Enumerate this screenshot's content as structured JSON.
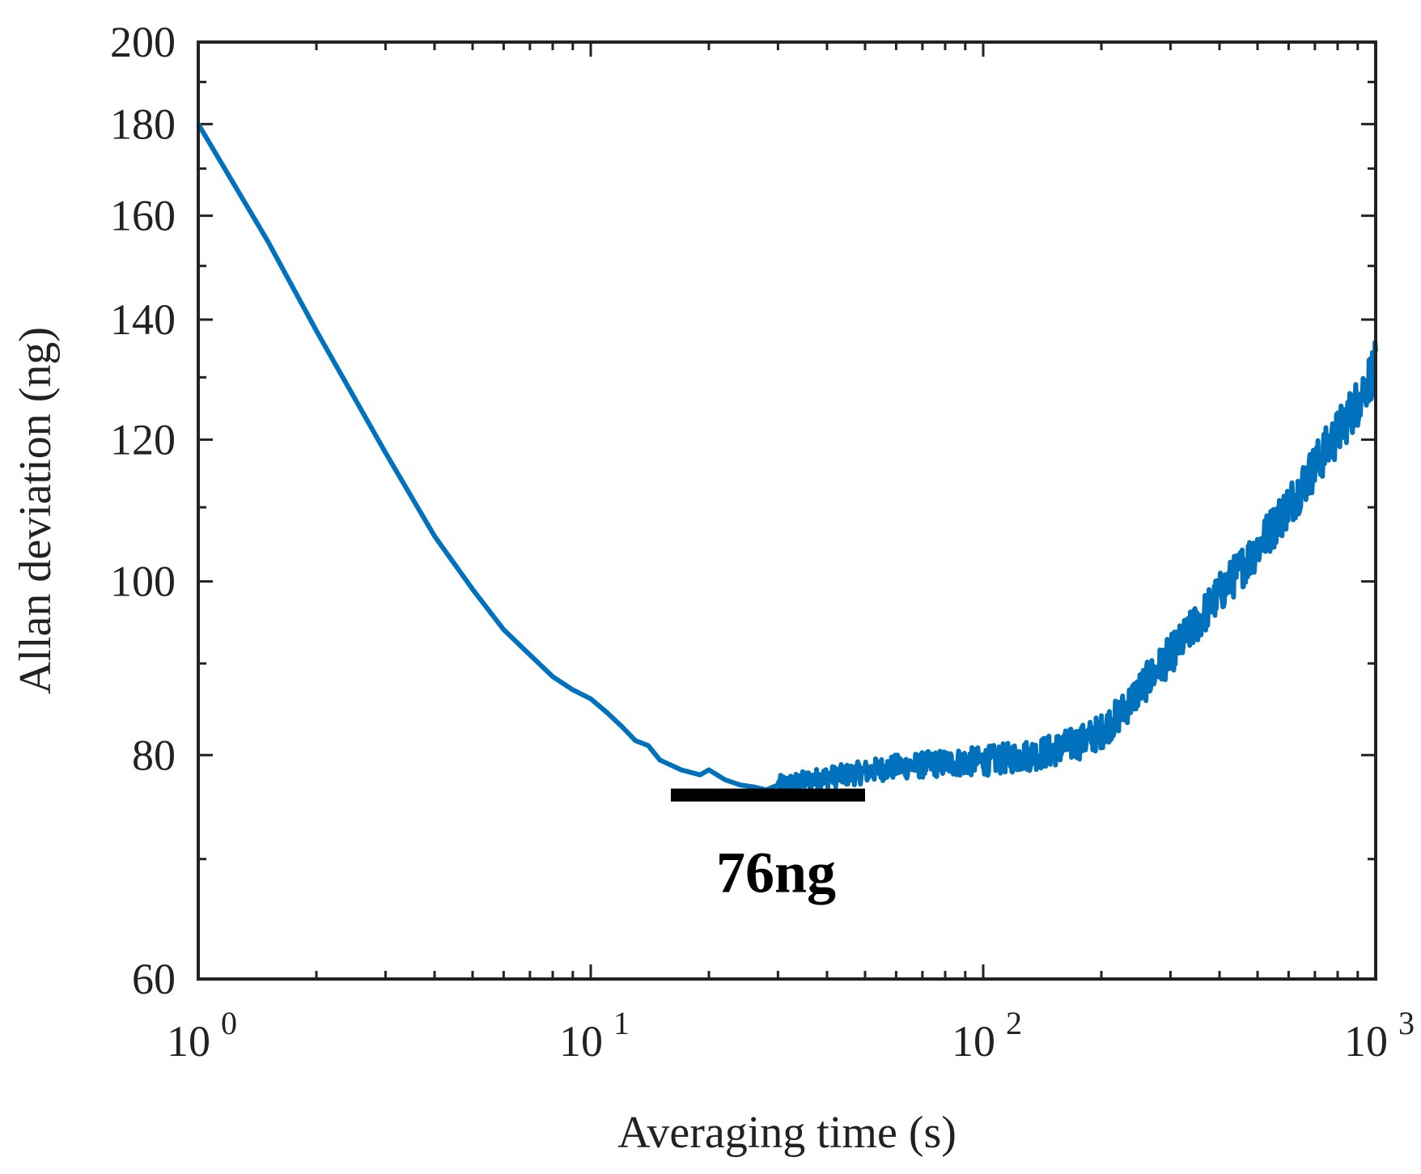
{
  "chart_data": {
    "type": "line",
    "title": "",
    "xlabel": "Averaging time (s)",
    "ylabel": "Allan deviation (ng)",
    "xscale": "log",
    "yscale": "log",
    "xlim": [
      1,
      1000
    ],
    "ylim": [
      60,
      200
    ],
    "x_ticks": [
      {
        "value": 1,
        "base": "10",
        "exp": "0"
      },
      {
        "value": 10,
        "base": "10",
        "exp": "1"
      },
      {
        "value": 100,
        "base": "10",
        "exp": "2"
      },
      {
        "value": 1000,
        "base": "10",
        "exp": "3"
      }
    ],
    "y_ticks": [
      {
        "value": 60,
        "label": "60"
      },
      {
        "value": 80,
        "label": "80"
      },
      {
        "value": 100,
        "label": "100"
      },
      {
        "value": 120,
        "label": "120"
      },
      {
        "value": 140,
        "label": "140"
      },
      {
        "value": 160,
        "label": "160"
      },
      {
        "value": 180,
        "label": "180"
      },
      {
        "value": 200,
        "label": "200"
      }
    ],
    "series": [
      {
        "name": "Allan deviation",
        "color": "#0072BD",
        "x": [
          1,
          1.5,
          2,
          3,
          4,
          5,
          6,
          7,
          8,
          9,
          10,
          11,
          12,
          13,
          14,
          15,
          17,
          19,
          20,
          22,
          24,
          26,
          28,
          30,
          33,
          36,
          40,
          45,
          50,
          55,
          60,
          70,
          80,
          90,
          100,
          110,
          120,
          130,
          140,
          150,
          165,
          180,
          200,
          225,
          250,
          280,
          320,
          360,
          400,
          450,
          500,
          560,
          630,
          700,
          800,
          900,
          1000
        ],
        "y": [
          180,
          155,
          138,
          118,
          106,
          99,
          94,
          91,
          88.5,
          87,
          86,
          84.5,
          83,
          81.5,
          81,
          79.5,
          78.5,
          78,
          78.5,
          77.5,
          77,
          76.8,
          76.5,
          77,
          77.2,
          77.5,
          77.8,
          78,
          78.3,
          78.6,
          78.8,
          79,
          79.2,
          79.3,
          79.4,
          79.6,
          79.8,
          80,
          80.2,
          80.5,
          81,
          81.5,
          82.5,
          84.5,
          87,
          89.5,
          92.5,
          95.5,
          98.5,
          101.5,
          104.5,
          108,
          112,
          116,
          121,
          126,
          132
        ],
        "noise_from_x": 30
      }
    ],
    "annotations": [
      {
        "text": "76ng",
        "y": 76,
        "x_start": 16,
        "x_end": 50,
        "color": "#000000"
      }
    ]
  }
}
